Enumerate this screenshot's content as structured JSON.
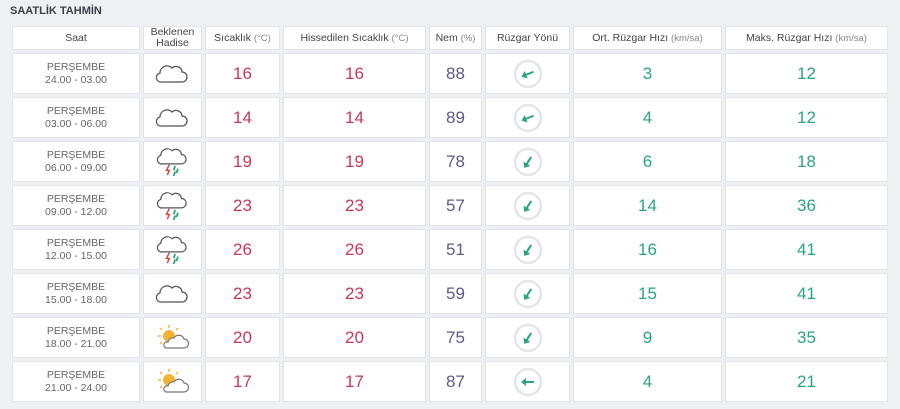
{
  "title": "SAATLİK TAHMİN",
  "table": {
    "header": [
      {
        "label": "Saat"
      },
      {
        "label": "Beklenen Hadise"
      },
      {
        "label": "Sıcaklık",
        "unit": "(°C)"
      },
      {
        "label": "Hissedilen Sıcaklık",
        "unit": "(°C)"
      },
      {
        "label": "Nem",
        "unit": "(%)"
      },
      {
        "label": "Rüzgar Yönü"
      },
      {
        "label": "Ort. Rüzgar Hızı",
        "unit": "(km/sa)"
      },
      {
        "label": "Maks. Rüzgar Hızı",
        "unit": "(km/sa)"
      }
    ],
    "rows": [
      {
        "day": "PERŞEMBE",
        "time": "24.00 - 03.00",
        "temp": 16,
        "feels": 16,
        "humidity": 88,
        "wind_avg": 3,
        "wind_max": 12
      },
      {
        "day": "PERŞEMBE",
        "time": "03.00 - 06.00",
        "temp": 14,
        "feels": 14,
        "humidity": 89,
        "wind_avg": 4,
        "wind_max": 12
      },
      {
        "day": "PERŞEMBE",
        "time": "06.00 - 09.00",
        "temp": 19,
        "feels": 19,
        "humidity": 78,
        "wind_avg": 6,
        "wind_max": 18
      },
      {
        "day": "PERŞEMBE",
        "time": "09.00 - 12.00",
        "temp": 23,
        "feels": 23,
        "humidity": 57,
        "wind_avg": 14,
        "wind_max": 36
      },
      {
        "day": "PERŞEMBE",
        "time": "12.00 - 15.00",
        "temp": 26,
        "feels": 26,
        "humidity": 51,
        "wind_avg": 16,
        "wind_max": 41
      },
      {
        "day": "PERŞEMBE",
        "time": "15.00 - 18.00",
        "temp": 23,
        "feels": 23,
        "humidity": 59,
        "wind_avg": 15,
        "wind_max": 41
      },
      {
        "day": "PERŞEMBE",
        "time": "18.00 - 21.00",
        "temp": 20,
        "feels": 20,
        "humidity": 75,
        "wind_avg": 9,
        "wind_max": 35
      },
      {
        "day": "PERŞEMBE",
        "time": "21.00 - 24.00",
        "temp": 17,
        "feels": 17,
        "humidity": 87,
        "wind_avg": 4,
        "wind_max": 21
      }
    ]
  }
}
